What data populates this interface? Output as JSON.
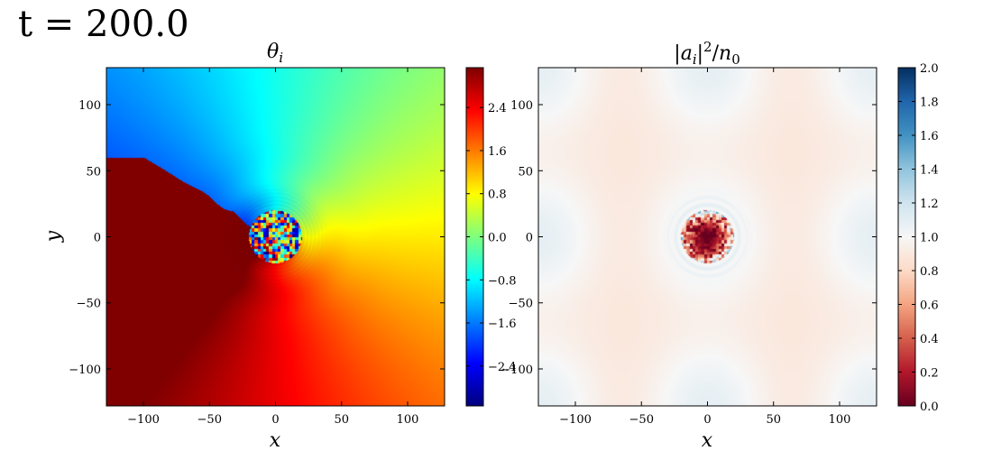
{
  "figure": {
    "time_label": "t = 200.0"
  },
  "chart_data": [
    {
      "type": "heatmap",
      "title": "θ_i",
      "xlabel": "x",
      "ylabel": "y",
      "xlim": [
        -128,
        128
      ],
      "ylim": [
        -128,
        128
      ],
      "x_ticks": [
        -100,
        -50,
        0,
        50,
        100
      ],
      "y_ticks": [
        -100,
        -50,
        0,
        50,
        100
      ],
      "colormap": "jet",
      "colorbar": {
        "range": [
          -3.14,
          3.14
        ],
        "ticks": [
          -2.4,
          -1.6,
          -0.8,
          0.0,
          0.8,
          1.6,
          2.4
        ],
        "tick_labels": [
          "−2.4",
          "−1.6",
          "−0.8",
          "0.0",
          "0.8",
          "1.6",
          "2.4"
        ]
      },
      "features": {
        "vortex_center": [
          0,
          0
        ],
        "noisy_core_radius": 20,
        "branch_cut_from_x": -128,
        "branch_cut_y": 60
      }
    },
    {
      "type": "heatmap",
      "title": "|a_i|²/n₀",
      "xlabel": "x",
      "ylabel": "",
      "xlim": [
        -128,
        128
      ],
      "ylim": [
        -128,
        128
      ],
      "x_ticks": [
        -100,
        -50,
        0,
        50,
        100
      ],
      "y_ticks": [
        -100,
        -50,
        0,
        50,
        100
      ],
      "colormap": "RdBu",
      "colorbar": {
        "range": [
          0.0,
          2.0
        ],
        "ticks": [
          0.0,
          0.2,
          0.4,
          0.6,
          0.8,
          1.0,
          1.2,
          1.4,
          1.6,
          1.8,
          2.0
        ],
        "tick_labels": [
          "0.0",
          "0.2",
          "0.4",
          "0.6",
          "0.8",
          "1.0",
          "1.2",
          "1.4",
          "1.6",
          "1.8",
          "2.0"
        ]
      },
      "features": {
        "vortex_center": [
          0,
          0
        ],
        "depleted_core_radius": 20,
        "background_density": 1.0
      }
    }
  ],
  "tick_labels": {
    "x": [
      "−100",
      "−50",
      "0",
      "50",
      "100"
    ],
    "y": [
      "−100",
      "−50",
      "0",
      "50",
      "100"
    ]
  }
}
